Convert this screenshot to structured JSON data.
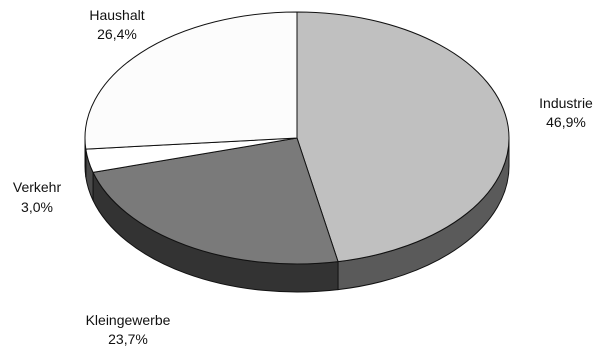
{
  "chart_data": {
    "type": "pie",
    "style": "3d",
    "title": "",
    "slices": [
      {
        "label": "Industrie",
        "value": 46.9,
        "value_text": "46,9%",
        "top_color": "#c0c0c0",
        "side_color": "#5a5a5a"
      },
      {
        "label": "Kleingewerbe",
        "value": 23.7,
        "value_text": "23,7%",
        "top_color": "#7a7a7a",
        "side_color": "#333333"
      },
      {
        "label": "Verkehr",
        "value": 3.0,
        "value_text": "3,0%",
        "top_color": "#ffffff",
        "side_color": "#4a4a4a"
      },
      {
        "label": "Haushalt",
        "value": 26.4,
        "value_text": "26,4%",
        "top_color": "#fcfcfc",
        "side_color": "#484848"
      }
    ]
  }
}
